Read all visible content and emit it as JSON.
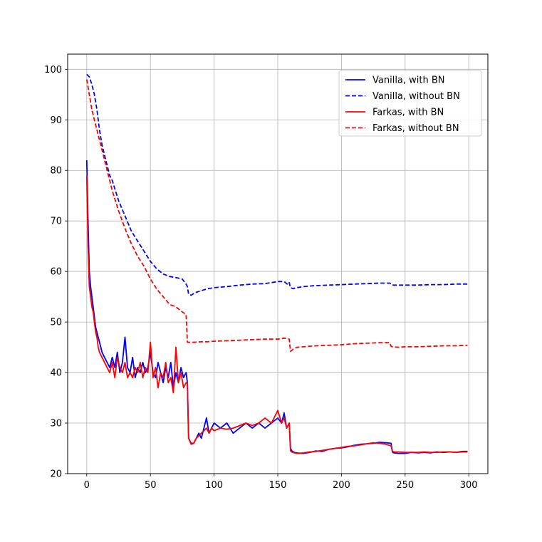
{
  "chart_data": {
    "type": "line",
    "title": "",
    "xlabel": "",
    "ylabel": "",
    "xlim": [
      -15,
      315
    ],
    "ylim": [
      20,
      103
    ],
    "xticks": [
      0,
      50,
      100,
      150,
      200,
      250,
      300
    ],
    "yticks": [
      20,
      30,
      40,
      50,
      60,
      70,
      80,
      90,
      100
    ],
    "xtick_labels": [
      "0",
      "50",
      "100",
      "150",
      "200",
      "250",
      "300"
    ],
    "ytick_labels": [
      "20",
      "30",
      "40",
      "50",
      "60",
      "70",
      "80",
      "90",
      "100"
    ],
    "grid": true,
    "legend_position": "top-right",
    "series": [
      {
        "name": "Vanilla, with BN",
        "color": "#0000ff",
        "dash": "solid",
        "x": [
          0,
          1,
          2,
          3,
          4,
          5,
          6,
          7,
          8,
          9,
          10,
          12,
          14,
          16,
          18,
          20,
          22,
          24,
          26,
          28,
          30,
          32,
          34,
          36,
          38,
          40,
          42,
          44,
          46,
          48,
          50,
          52,
          54,
          56,
          58,
          60,
          62,
          64,
          66,
          68,
          70,
          72,
          74,
          76,
          78,
          79,
          80,
          82,
          84,
          86,
          88,
          90,
          92,
          94,
          96,
          98,
          100,
          105,
          110,
          115,
          120,
          125,
          130,
          135,
          140,
          145,
          150,
          153,
          155,
          157,
          159,
          160,
          161,
          163,
          165,
          170,
          175,
          180,
          185,
          190,
          195,
          200,
          205,
          210,
          215,
          220,
          225,
          230,
          235,
          239,
          240,
          241,
          245,
          250,
          255,
          260,
          265,
          270,
          275,
          280,
          285,
          290,
          295,
          299
        ],
        "y": [
          82,
          70,
          60,
          57,
          55,
          53,
          51,
          49,
          48,
          47,
          46,
          44,
          43,
          42,
          41,
          43,
          41,
          44,
          40,
          42,
          47,
          41,
          40,
          43,
          39,
          41,
          40,
          42,
          40,
          41,
          44,
          40,
          39,
          42,
          40,
          38,
          41,
          39,
          42,
          37,
          40,
          38,
          41,
          39,
          40,
          38,
          27,
          26,
          26,
          27,
          28,
          27,
          29,
          31,
          28,
          29,
          30,
          29,
          30,
          28,
          29,
          30,
          29,
          30,
          29,
          30,
          31,
          30,
          32,
          29,
          30,
          25,
          24.5,
          24.2,
          24.1,
          24,
          24.2,
          24.5,
          24.4,
          24.8,
          25,
          25.1,
          25.3,
          25.6,
          25.8,
          25.9,
          26,
          26.2,
          26.1,
          26,
          24.3,
          24.1,
          24,
          24,
          24.2,
          24.1,
          24.2,
          24.1,
          24.3,
          24.2,
          24.3,
          24.2,
          24.4,
          24.4
        ]
      },
      {
        "name": "Vanilla, without BN",
        "color": "#0000ff",
        "dash": "dashed",
        "x": [
          0,
          2,
          4,
          6,
          8,
          10,
          12,
          14,
          16,
          18,
          20,
          25,
          30,
          35,
          40,
          45,
          50,
          55,
          60,
          65,
          70,
          75,
          78,
          79,
          80,
          82,
          85,
          90,
          95,
          100,
          110,
          120,
          130,
          140,
          150,
          155,
          158,
          159,
          160,
          162,
          165,
          170,
          180,
          190,
          200,
          210,
          220,
          230,
          238,
          239,
          240,
          245,
          250,
          260,
          270,
          280,
          290,
          299
        ],
        "y": [
          99,
          98.5,
          97,
          95,
          92,
          88,
          85,
          83,
          81,
          79,
          78,
          74,
          71,
          68,
          66,
          64,
          62,
          60.5,
          59.5,
          59,
          58.8,
          58.5,
          57.5,
          57,
          55.5,
          55.3,
          55.8,
          56.2,
          56.6,
          56.8,
          57,
          57.3,
          57.5,
          57.6,
          58,
          58,
          57.4,
          57.8,
          56.8,
          56.6,
          56.8,
          57,
          57.2,
          57.3,
          57.4,
          57.5,
          57.6,
          57.7,
          57.7,
          57.5,
          57.3,
          57.3,
          57.3,
          57.3,
          57.4,
          57.4,
          57.5,
          57.5
        ]
      },
      {
        "name": "Farkas, with BN",
        "color": "#ff0000",
        "dash": "solid",
        "x": [
          0,
          1,
          2,
          3,
          4,
          5,
          6,
          7,
          8,
          9,
          10,
          12,
          14,
          16,
          18,
          20,
          22,
          24,
          26,
          28,
          30,
          32,
          34,
          36,
          38,
          40,
          42,
          44,
          46,
          48,
          50,
          52,
          54,
          56,
          58,
          60,
          62,
          64,
          66,
          68,
          70,
          72,
          74,
          76,
          78,
          79,
          80,
          82,
          84,
          86,
          88,
          90,
          92,
          94,
          96,
          98,
          100,
          105,
          110,
          115,
          120,
          125,
          130,
          135,
          140,
          145,
          150,
          153,
          155,
          157,
          159,
          160,
          161,
          163,
          165,
          170,
          175,
          180,
          185,
          190,
          195,
          200,
          205,
          210,
          215,
          220,
          225,
          230,
          235,
          239,
          240,
          241,
          245,
          250,
          255,
          260,
          265,
          270,
          275,
          280,
          285,
          290,
          295,
          299
        ],
        "y": [
          79,
          65,
          57,
          55,
          53,
          52,
          50,
          48,
          47,
          45,
          44,
          43,
          42,
          41,
          40,
          42,
          39,
          43,
          41,
          40,
          42,
          39,
          40,
          39,
          41,
          40,
          42,
          39,
          41,
          40,
          46,
          39,
          41,
          37,
          40,
          39,
          42,
          38,
          39,
          36,
          45,
          38,
          40,
          37,
          38,
          38,
          27,
          25.8,
          26,
          27,
          27.5,
          28,
          28.5,
          29,
          28,
          29,
          28.5,
          29,
          28.8,
          29,
          29.5,
          30,
          29.5,
          30,
          31,
          30,
          32.5,
          30,
          31,
          29,
          30,
          24.5,
          24.3,
          24.1,
          24,
          24.1,
          24.3,
          24.4,
          24.6,
          24.8,
          25,
          25.2,
          25.4,
          25.5,
          25.7,
          25.9,
          26.1,
          26,
          25.8,
          25.5,
          24.5,
          24.3,
          24.3,
          24.2,
          24.2,
          24.2,
          24.3,
          24.2,
          24.2,
          24.3,
          24.3,
          24.2,
          24.3,
          24.3
        ]
      },
      {
        "name": "Farkas, without BN",
        "color": "#ff0000",
        "dash": "dashed",
        "x": [
          0,
          2,
          4,
          6,
          8,
          10,
          12,
          14,
          16,
          18,
          20,
          25,
          30,
          35,
          40,
          45,
          50,
          55,
          60,
          65,
          70,
          75,
          78,
          79,
          80,
          82,
          85,
          90,
          95,
          100,
          110,
          120,
          130,
          140,
          150,
          155,
          158,
          159,
          160,
          162,
          165,
          170,
          180,
          190,
          200,
          210,
          220,
          230,
          238,
          239,
          240,
          245,
          250,
          260,
          270,
          280,
          290,
          299
        ],
        "y": [
          98,
          95,
          92,
          90,
          88,
          86,
          84,
          82,
          80,
          78,
          76,
          72,
          68.5,
          65.5,
          63,
          61,
          58.5,
          56.5,
          55,
          53.5,
          53,
          52,
          51.5,
          46,
          46,
          46,
          46,
          46.1,
          46.1,
          46.2,
          46.3,
          46.4,
          46.5,
          46.6,
          46.6,
          46.8,
          46.7,
          46.6,
          44.2,
          44.6,
          45,
          45.1,
          45.3,
          45.4,
          45.5,
          45.7,
          45.8,
          45.9,
          45.9,
          45.2,
          45.1,
          45,
          45.1,
          45.1,
          45.2,
          45.3,
          45.3,
          45.4
        ]
      }
    ]
  }
}
